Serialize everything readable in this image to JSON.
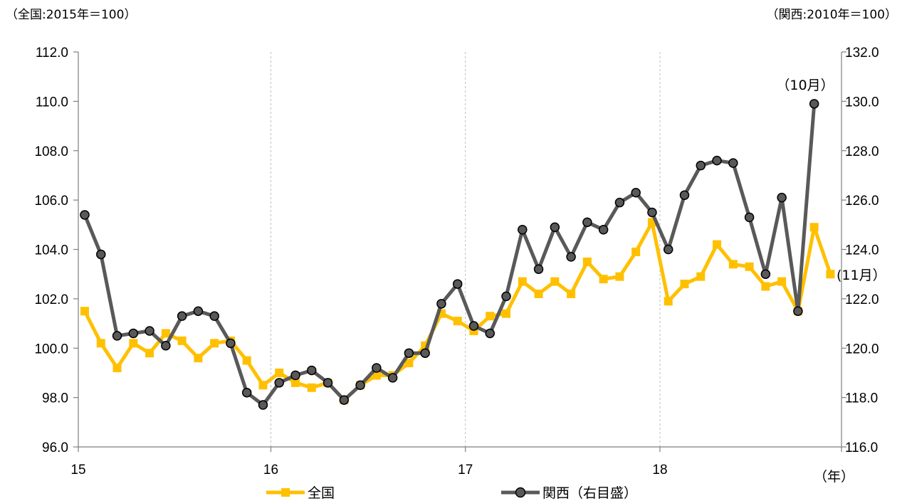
{
  "chart_data": {
    "type": "line",
    "left_unit_label": "（全国:2015年＝100）",
    "right_unit_label": "（関西:2010年＝100）",
    "x_axis_unit": "（年）",
    "x_tick_labels": [
      "15",
      "16",
      "17",
      "18"
    ],
    "left_ylim": [
      96.0,
      112.0
    ],
    "left_yticks": [
      "96.0",
      "98.0",
      "100.0",
      "102.0",
      "104.0",
      "106.0",
      "108.0",
      "110.0",
      "112.0"
    ],
    "right_ylim": [
      116.0,
      132.0
    ],
    "right_yticks": [
      "116.0",
      "118.0",
      "120.0",
      "122.0",
      "124.0",
      "126.0",
      "128.0",
      "130.0",
      "132.0"
    ],
    "vertical_gridlines": true,
    "legend_position": "bottom",
    "series": [
      {
        "name": "全国",
        "axis": "left",
        "color": "#FFC000",
        "marker": "square",
        "values": [
          101.5,
          100.2,
          99.2,
          100.2,
          99.8,
          100.6,
          100.3,
          99.6,
          100.2,
          100.3,
          99.5,
          98.5,
          99.0,
          98.6,
          98.4,
          98.6,
          97.9,
          98.5,
          98.9,
          98.9,
          99.4,
          100.1,
          101.4,
          101.1,
          100.7,
          101.3,
          101.4,
          102.7,
          102.2,
          102.7,
          102.2,
          103.5,
          102.8,
          102.9,
          103.9,
          105.1,
          101.9,
          102.6,
          102.9,
          104.2,
          103.4,
          103.3,
          102.5,
          102.7,
          101.5,
          104.9,
          103.0
        ]
      },
      {
        "name": "関西（右目盛）",
        "axis": "right",
        "color": "#595959",
        "marker": "circle",
        "values": [
          125.4,
          123.8,
          120.5,
          120.6,
          120.7,
          120.1,
          121.3,
          121.5,
          121.3,
          120.2,
          118.2,
          117.7,
          118.6,
          118.9,
          119.1,
          118.6,
          117.9,
          118.5,
          119.2,
          118.8,
          119.8,
          119.8,
          121.8,
          122.6,
          120.9,
          120.6,
          122.1,
          124.8,
          123.2,
          124.9,
          123.7,
          125.1,
          124.8,
          125.9,
          126.3,
          125.5,
          124.0,
          126.2,
          127.4,
          127.6,
          127.5,
          125.3,
          123.0,
          126.1,
          121.5,
          129.9
        ]
      }
    ],
    "annotations": [
      {
        "text": "（10月）",
        "series": "関西（右目盛）",
        "index": 45
      },
      {
        "text": "(11月）",
        "series": "全国",
        "index": 46
      }
    ]
  }
}
